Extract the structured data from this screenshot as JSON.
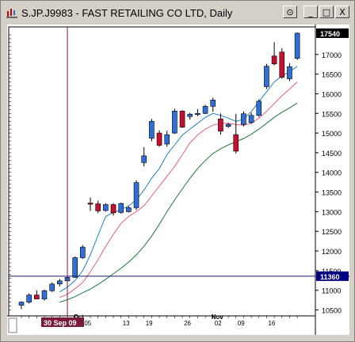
{
  "window": {
    "title": "S.JP.J9983 - FAST RETAILING CO LTD, Daily",
    "buttons": {
      "pin": "⊙",
      "minimize": "_",
      "maximize": "□",
      "close": "X"
    }
  },
  "chart_data": {
    "type": "candlestick",
    "title": "S.JP.J9983 - FAST RETAILING CO LTD, Daily",
    "ylim": [
      10350,
      17700
    ],
    "y_ticks": [
      10500,
      11000,
      11500,
      12000,
      12500,
      13000,
      13500,
      14000,
      14500,
      15000,
      15500,
      16000,
      16500,
      17000
    ],
    "last_price_label": "17540",
    "crosshair_price_label": "11360",
    "crosshair_price": 11360,
    "crosshair_date_label": "30 Sep 09",
    "x_month_labels": [
      {
        "index": 7,
        "label": "Oct"
      },
      {
        "index": 25,
        "label": "Nov"
      }
    ],
    "x_tick_labels": [
      {
        "index": 8,
        "label": "05"
      },
      {
        "index": 13,
        "label": "13"
      },
      {
        "index": 16,
        "label": "19"
      },
      {
        "index": 21,
        "label": "26"
      },
      {
        "index": 25,
        "label": "02"
      },
      {
        "index": 28,
        "label": "09"
      },
      {
        "index": 32,
        "label": "16"
      }
    ],
    "crosshair_index": 6,
    "candles": [
      {
        "o": 10620,
        "h": 10720,
        "l": 10520,
        "c": 10700
      },
      {
        "o": 10700,
        "h": 10920,
        "l": 10660,
        "c": 10880
      },
      {
        "o": 10880,
        "h": 11000,
        "l": 10800,
        "c": 10780
      },
      {
        "o": 10780,
        "h": 11020,
        "l": 10740,
        "c": 10990
      },
      {
        "o": 10990,
        "h": 11200,
        "l": 10960,
        "c": 11160
      },
      {
        "o": 11160,
        "h": 11290,
        "l": 11100,
        "c": 11240
      },
      {
        "o": 11240,
        "h": 11360,
        "l": 11180,
        "c": 11330
      },
      {
        "o": 11330,
        "h": 11860,
        "l": 11320,
        "c": 11830
      },
      {
        "o": 11830,
        "h": 12150,
        "l": 11800,
        "c": 12100
      },
      {
        "o": 13220,
        "h": 13360,
        "l": 13020,
        "c": 13200
      },
      {
        "o": 13200,
        "h": 13280,
        "l": 12960,
        "c": 13020
      },
      {
        "o": 13030,
        "h": 13220,
        "l": 13000,
        "c": 13180
      },
      {
        "o": 13180,
        "h": 13220,
        "l": 12900,
        "c": 12970
      },
      {
        "o": 12980,
        "h": 13230,
        "l": 12950,
        "c": 13210
      },
      {
        "o": 13000,
        "h": 13140,
        "l": 12980,
        "c": 13100
      },
      {
        "o": 13100,
        "h": 13800,
        "l": 13040,
        "c": 13740
      },
      {
        "o": 14250,
        "h": 14640,
        "l": 14150,
        "c": 14420
      },
      {
        "o": 14870,
        "h": 15360,
        "l": 14790,
        "c": 15300
      },
      {
        "o": 15000,
        "h": 15070,
        "l": 14650,
        "c": 14690
      },
      {
        "o": 14720,
        "h": 15060,
        "l": 14650,
        "c": 14960
      },
      {
        "o": 15000,
        "h": 15620,
        "l": 14980,
        "c": 15560
      },
      {
        "o": 15560,
        "h": 15580,
        "l": 15130,
        "c": 15150
      },
      {
        "o": 15420,
        "h": 15520,
        "l": 15340,
        "c": 15480
      },
      {
        "o": 15480,
        "h": 15610,
        "l": 15430,
        "c": 15500
      },
      {
        "o": 15500,
        "h": 15720,
        "l": 15480,
        "c": 15680
      },
      {
        "o": 15680,
        "h": 15900,
        "l": 15540,
        "c": 15840
      },
      {
        "o": 15360,
        "h": 15500,
        "l": 14960,
        "c": 15050
      },
      {
        "o": 15170,
        "h": 15260,
        "l": 15130,
        "c": 15220
      },
      {
        "o": 14960,
        "h": 15490,
        "l": 14480,
        "c": 14540
      },
      {
        "o": 15220,
        "h": 15550,
        "l": 15170,
        "c": 15490
      },
      {
        "o": 15270,
        "h": 15520,
        "l": 15230,
        "c": 15450
      },
      {
        "o": 15450,
        "h": 15860,
        "l": 15410,
        "c": 15810
      },
      {
        "o": 16180,
        "h": 16760,
        "l": 16120,
        "c": 16700
      },
      {
        "o": 16960,
        "h": 17310,
        "l": 16720,
        "c": 16760
      },
      {
        "o": 17060,
        "h": 17160,
        "l": 16380,
        "c": 16420
      },
      {
        "o": 16380,
        "h": 16780,
        "l": 16320,
        "c": 16690
      },
      {
        "o": 16900,
        "h": 17560,
        "l": 16860,
        "c": 17540
      }
    ],
    "ma_fast": [
      null,
      null,
      null,
      null,
      null,
      10960,
      11080,
      11250,
      11500,
      11900,
      12400,
      12880,
      12980,
      13050,
      13150,
      13300,
      13550,
      13850,
      14100,
      14450,
      14700,
      14950,
      15100,
      15250,
      15400,
      15500,
      15450,
      15380,
      15300,
      15350,
      15550,
      15800,
      16050,
      16300,
      16450,
      16560,
      16700
    ],
    "ma_mid": [
      null,
      null,
      null,
      null,
      null,
      10820,
      10900,
      11040,
      11200,
      11470,
      11780,
      12120,
      12420,
      12700,
      12880,
      13000,
      13150,
      13400,
      13650,
      13900,
      14150,
      14450,
      14750,
      14950,
      15100,
      15200,
      15250,
      15250,
      15220,
      15200,
      15250,
      15380,
      15550,
      15750,
      15950,
      16120,
      16300
    ],
    "ma_slow": [
      null,
      null,
      null,
      null,
      null,
      10700,
      10760,
      10840,
      10940,
      11030,
      11150,
      11280,
      11420,
      11560,
      11720,
      11900,
      12120,
      12380,
      12680,
      13000,
      13300,
      13580,
      13850,
      14100,
      14300,
      14480,
      14600,
      14700,
      14780,
      14860,
      14970,
      15100,
      15250,
      15400,
      15530,
      15640,
      15760
    ]
  }
}
